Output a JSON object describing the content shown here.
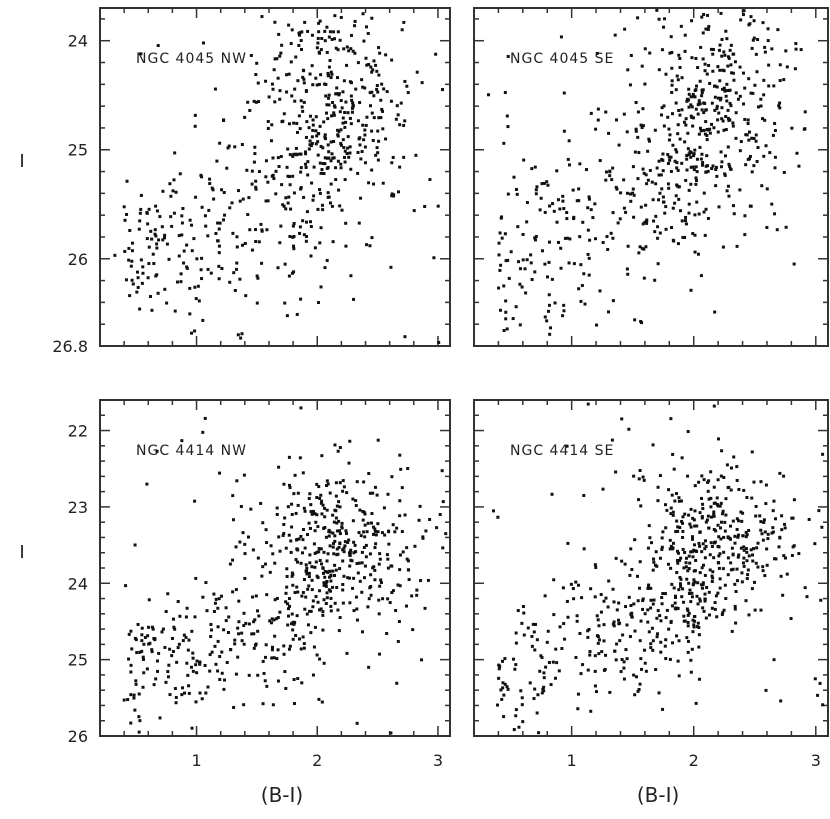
{
  "chart_data": [
    {
      "type": "scatter",
      "panel_label": "NGC 4045 NW",
      "xlabel": "",
      "ylabel": "I",
      "xlim": [
        0.2,
        3.1
      ],
      "ylim": [
        26.8,
        23.7
      ],
      "x_ticks": [],
      "y_ticks": [
        "24",
        "25",
        "26",
        "26.8"
      ]
    },
    {
      "type": "scatter",
      "panel_label": "NGC 4045 SE",
      "xlabel": "",
      "ylabel": "",
      "xlim": [
        0.2,
        3.1
      ],
      "ylim": [
        26.8,
        23.7
      ],
      "x_ticks": [],
      "y_ticks": []
    },
    {
      "type": "scatter",
      "panel_label": "NGC 4414 NW",
      "xlabel": "(B-I)",
      "ylabel": "I",
      "xlim": [
        0.2,
        3.1
      ],
      "ylim": [
        26.0,
        21.6
      ],
      "x_ticks": [
        "1",
        "2",
        "3"
      ],
      "y_ticks": [
        "22",
        "23",
        "24",
        "25",
        "26"
      ]
    },
    {
      "type": "scatter",
      "panel_label": "NGC 4414 SE",
      "xlabel": "(B-I)",
      "ylabel": "",
      "xlim": [
        0.2,
        3.1
      ],
      "ylim": [
        26.0,
        21.6
      ],
      "x_ticks": [
        "1",
        "2",
        "3"
      ],
      "y_ticks": []
    }
  ]
}
